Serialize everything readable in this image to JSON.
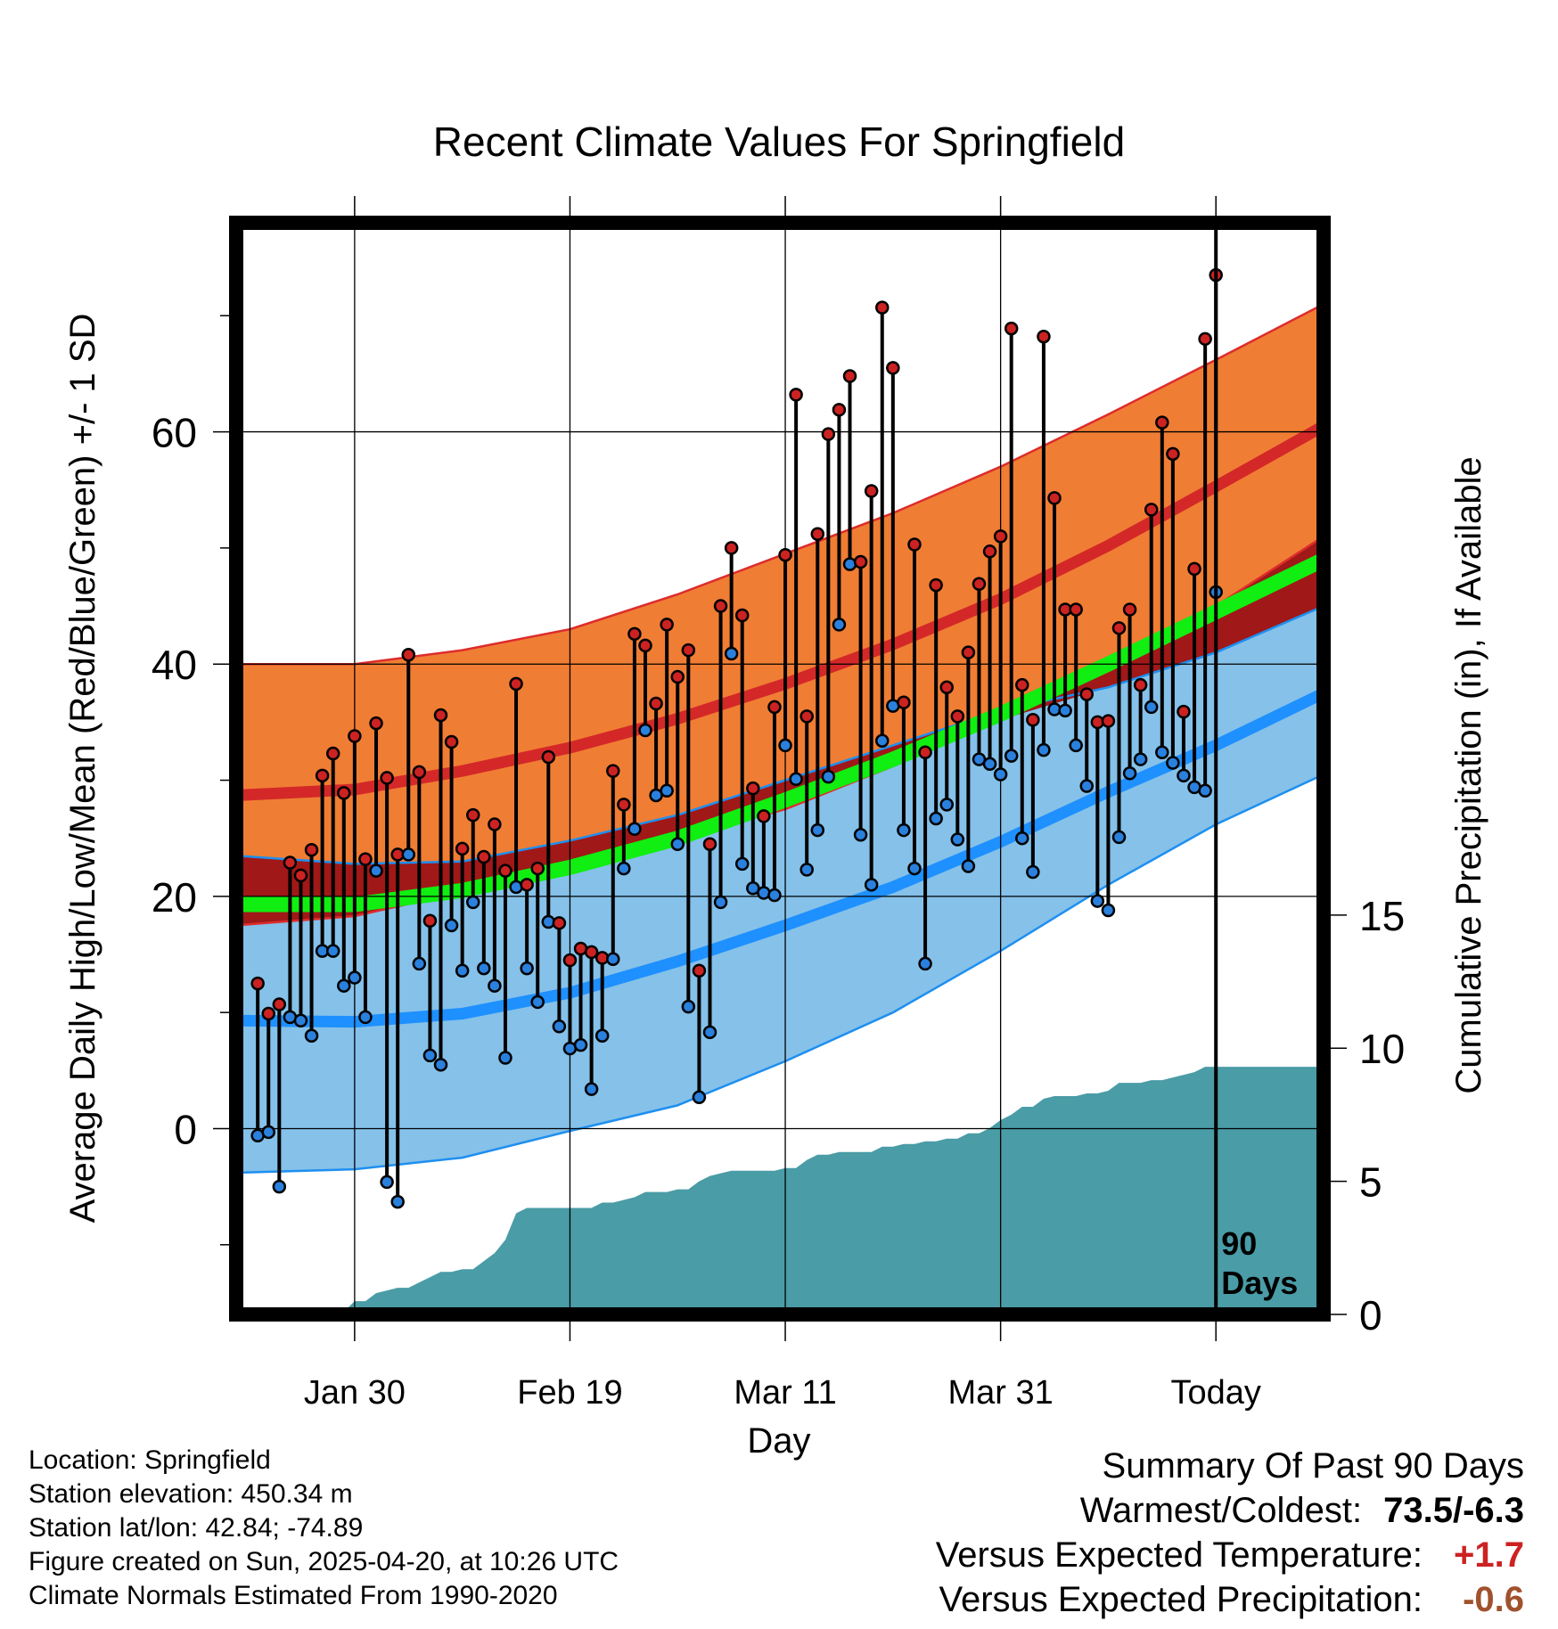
{
  "chart_data": {
    "type": "line",
    "title": "Recent Climate Values For Springfield",
    "xlabel": "Day",
    "ylabel": "Average Daily High/Low/Mean (Red/Blue/Green) +/- 1 SD",
    "y2label": "Cumulative Precipitation (in), If Available",
    "ylim": [
      -16,
      78
    ],
    "yticks": [
      0,
      20,
      40,
      60
    ],
    "y2lim": [
      0,
      41
    ],
    "y2ticks": [
      0,
      5,
      10,
      15
    ],
    "xlim": [
      -11,
      90
    ],
    "xticks": [
      {
        "day": 0,
        "label": "Jan 30"
      },
      {
        "day": 20,
        "label": "Feb 19"
      },
      {
        "day": 40,
        "label": "Mar 11"
      },
      {
        "day": 60,
        "label": "Mar 31"
      },
      {
        "day": 80,
        "label": "Today"
      }
    ],
    "grid": true,
    "marker": {
      "day": 80,
      "label_line1": "90",
      "label_line2": "Days"
    },
    "colors": {
      "high_band": "#f07d34",
      "high_mean": "#d42828",
      "high_edge": "#dd2c2c",
      "low_band": "#85c1e9",
      "low_mean": "#1e90ff",
      "low_edge": "#1e8ff0",
      "avg_mean": "#11ee11",
      "overlap": "#a01818",
      "precip": "#4a9ca6",
      "high_marker": "#cc2222",
      "low_marker": "#2a80dd"
    },
    "normals_x": [
      -11,
      0,
      10,
      20,
      30,
      40,
      50,
      60,
      70,
      80,
      90
    ],
    "normal_high": {
      "mean": [
        28.7,
        29.2,
        30.8,
        32.8,
        35.3,
        38.3,
        41.7,
        45.6,
        50.2,
        55.3,
        60.5
      ],
      "upper": [
        40.0,
        40.0,
        41.2,
        43.0,
        46.0,
        49.5,
        53.0,
        57.0,
        61.5,
        66.2,
        71.0
      ],
      "lower": [
        17.5,
        18.3,
        20.4,
        22.6,
        25.0,
        27.5,
        31.2,
        35.2,
        39.7,
        45.0,
        51.0
      ]
    },
    "normal_low": {
      "mean": [
        9.3,
        9.2,
        9.9,
        11.7,
        14.4,
        17.5,
        20.8,
        24.7,
        29.0,
        33.0,
        37.5
      ],
      "upper": [
        23.5,
        22.8,
        23.0,
        24.8,
        27.0,
        30.0,
        33.0,
        36.0,
        38.0,
        41.0,
        45.0
      ],
      "lower": [
        -3.8,
        -3.5,
        -2.5,
        -0.2,
        2.0,
        5.8,
        10.0,
        15.3,
        21.0,
        26.2,
        30.5
      ]
    },
    "normal_mean": [
      19.3,
      19.3,
      20.5,
      22.5,
      25.0,
      28.3,
      31.8,
      35.7,
      40.0,
      44.5,
      49.0
    ],
    "series": [
      {
        "name": "High",
        "values": [
          12.5,
          9.9,
          10.7,
          22.9,
          21.8,
          24.0,
          30.4,
          32.3,
          28.9,
          33.8,
          23.2,
          34.9,
          30.2,
          23.6,
          40.8,
          30.7,
          17.9,
          35.6,
          33.3,
          24.1,
          27.0,
          23.4,
          26.2,
          22.2,
          38.3,
          21.0,
          22.4,
          32.0,
          17.7,
          14.5,
          15.5,
          15.2,
          14.7,
          30.8,
          27.9,
          42.6,
          41.6,
          36.6,
          43.4,
          38.9,
          41.2,
          13.6,
          24.5,
          45.0,
          50.0,
          44.2,
          29.3,
          26.9,
          36.3,
          49.4,
          63.2,
          35.5,
          51.2,
          59.8,
          61.9,
          64.8,
          48.8,
          54.9,
          70.7,
          65.5,
          36.7,
          50.3,
          32.4,
          46.8,
          38.0,
          35.5,
          41.0,
          46.9,
          49.7,
          51.0,
          68.9,
          38.2,
          35.2,
          68.2,
          54.3,
          44.7,
          44.7,
          37.4,
          35.0,
          35.1,
          43.1,
          44.7,
          38.2,
          53.3,
          60.8,
          58.1,
          35.9,
          48.2,
          68.0,
          73.5
        ]
      },
      {
        "name": "Low",
        "values": [
          -0.6,
          -0.3,
          -5.0,
          9.6,
          9.3,
          8.0,
          15.3,
          15.3,
          12.3,
          13.0,
          9.6,
          22.2,
          -4.6,
          -6.3,
          23.6,
          14.2,
          6.3,
          5.5,
          17.5,
          13.6,
          19.5,
          13.8,
          12.3,
          6.1,
          20.8,
          13.8,
          10.9,
          17.8,
          8.8,
          6.9,
          7.2,
          3.4,
          8.0,
          14.6,
          22.4,
          25.8,
          34.3,
          28.7,
          29.1,
          24.5,
          10.5,
          2.7,
          8.3,
          19.5,
          40.9,
          22.8,
          20.7,
          20.3,
          20.1,
          33.0,
          30.1,
          22.3,
          25.7,
          30.3,
          43.4,
          48.6,
          25.3,
          21.0,
          33.4,
          36.4,
          25.7,
          22.4,
          14.2,
          26.7,
          27.9,
          24.9,
          22.6,
          31.8,
          31.4,
          30.5,
          32.1,
          25.0,
          22.1,
          32.6,
          36.1,
          36.0,
          33.0,
          29.5,
          19.6,
          18.8,
          25.1,
          30.6,
          31.8,
          36.3,
          32.4,
          31.5,
          30.4,
          29.4,
          29.1,
          46.2
        ]
      }
    ],
    "precip_cumulative": [
      0,
      0,
      0,
      0,
      0,
      0,
      0,
      0,
      0,
      0,
      0.1,
      0.5,
      0.5,
      0.8,
      0.9,
      1.0,
      1.0,
      1.2,
      1.4,
      1.6,
      1.6,
      1.7,
      1.7,
      2.0,
      2.3,
      2.8,
      3.8,
      4.0,
      4.0,
      4.0,
      4.0,
      4.0,
      4.0,
      4.0,
      4.2,
      4.2,
      4.3,
      4.4,
      4.6,
      4.6,
      4.6,
      4.7,
      4.7,
      5.0,
      5.2,
      5.3,
      5.4,
      5.4,
      5.4,
      5.4,
      5.4,
      5.5,
      5.5,
      5.8,
      6.0,
      6.0,
      6.1,
      6.1,
      6.1,
      6.1,
      6.3,
      6.3,
      6.4,
      6.4,
      6.5,
      6.5,
      6.6,
      6.6,
      6.8,
      6.8,
      7.0,
      7.3,
      7.5,
      7.8,
      7.8,
      8.1,
      8.2,
      8.2,
      8.2,
      8.3,
      8.3,
      8.4,
      8.7,
      8.7,
      8.7,
      8.8,
      8.8,
      8.9,
      9.0,
      9.1,
      9.3,
      9.3,
      9.3,
      9.3,
      9.3,
      9.3,
      9.3,
      9.3,
      9.3,
      9.3,
      9.3,
      9.3
    ],
    "summary": {
      "title": "Summary Of Past 90 Days",
      "rows": [
        {
          "label": "Warmest/Coldest:",
          "value": "73.5/-6.3",
          "color": "#000000"
        },
        {
          "label": "Versus Expected Temperature:",
          "value": "+1.7",
          "color": "#cc2222"
        },
        {
          "label": "Versus Expected Precipitation:",
          "value": "-0.6",
          "color": "#a0522d"
        }
      ]
    }
  },
  "footer": {
    "location": "Location: Springfield",
    "elevation": "Station elevation: 450.34 m",
    "latlon": "Station lat/lon: 42.84; -74.89",
    "created": "Figure created on Sun, 2025-04-20, at 10:26 UTC",
    "normals": "Climate Normals Estimated From 1990-2020"
  }
}
